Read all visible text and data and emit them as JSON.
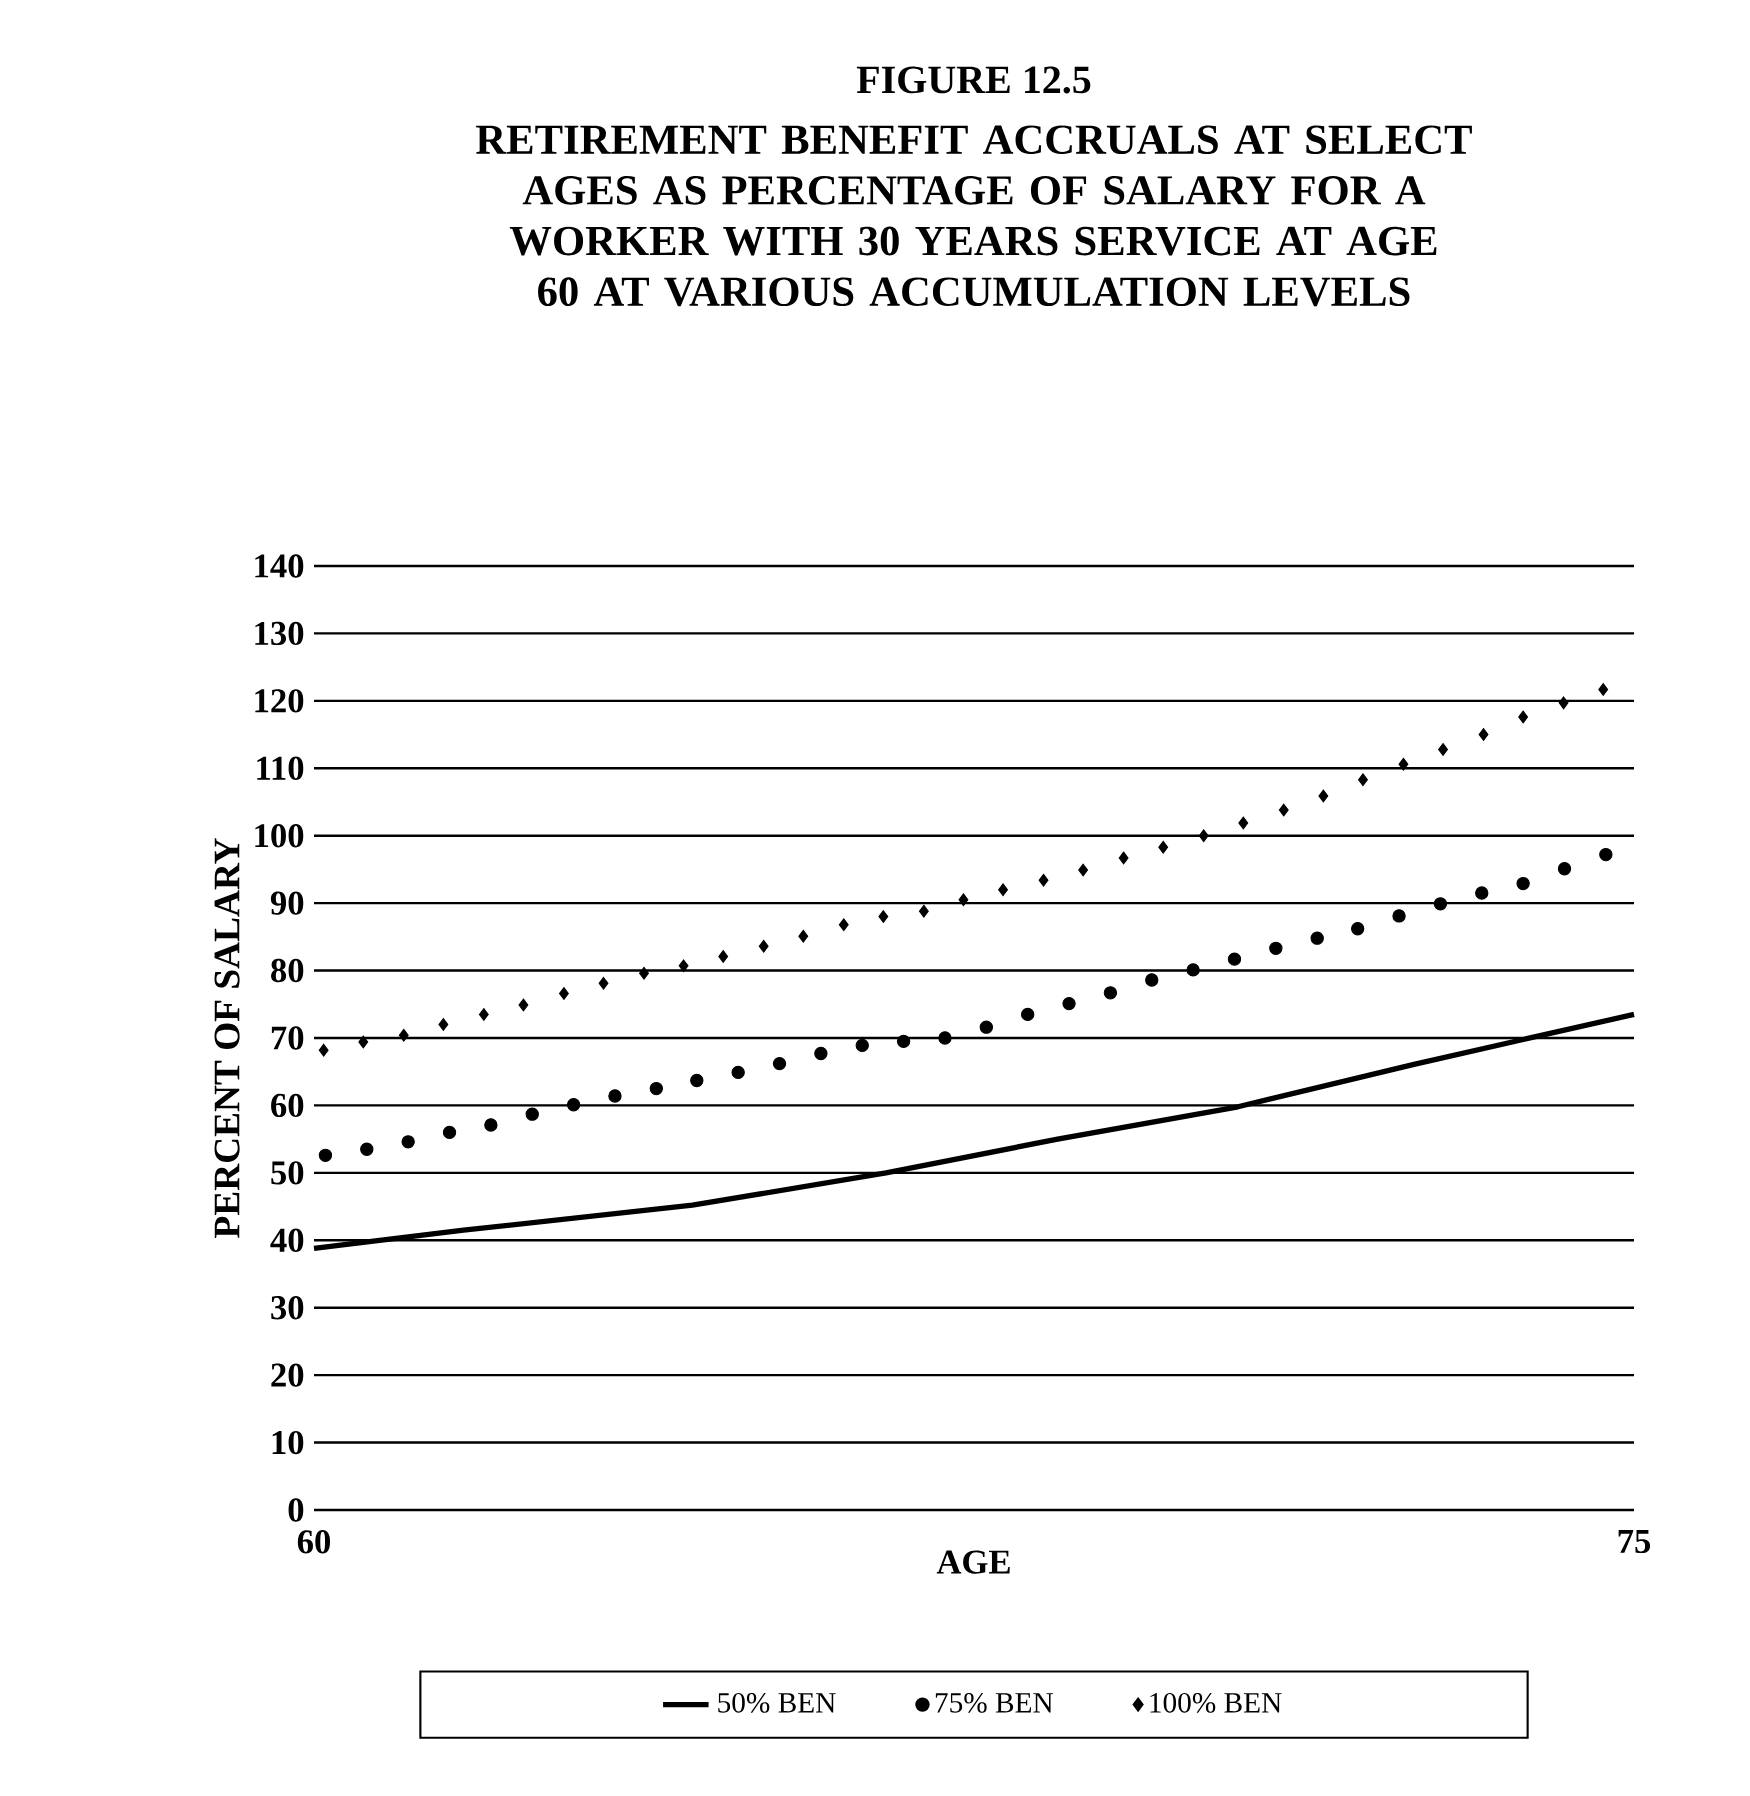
{
  "chart_data": {
    "type": "line",
    "title": "FIGURE 12.5",
    "subtitle": "RETIREMENT BENEFIT ACCRUALS AT SELECT AGES AS PERCENTAGE OF SALARY FOR A WORKER WITH 30 YEARS SERVICE AT AGE 60 AT VARIOUS ACCUMULATION LEVELS",
    "xlabel": "AGE",
    "ylabel": "PERCENT OF SALARY",
    "xlim": [
      60,
      75
    ],
    "xticks": [
      60,
      75
    ],
    "ylim": [
      0,
      140
    ],
    "yticks": [
      0,
      10,
      20,
      30,
      40,
      50,
      60,
      70,
      80,
      90,
      100,
      110,
      120,
      130,
      140
    ],
    "grid": "y",
    "legend": "bottom",
    "series": [
      {
        "name": "50% BEN",
        "type": "line",
        "color": "#000000",
        "line_style": "solid",
        "marker": "none",
        "x": [
          60,
          61.7,
          64.3,
          66.5,
          68.45,
          70.5,
          72.5,
          75
        ],
        "values": [
          38.8,
          41.5,
          45.2,
          50,
          55,
          59.8,
          66.1,
          73.5
        ]
      },
      {
        "name": "75% BEN",
        "type": "scatter",
        "color": "#000000",
        "marker": "circle",
        "x": [
          60.13,
          60.6,
          61.07,
          61.54,
          62.01,
          62.48,
          62.95,
          63.42,
          63.89,
          64.35,
          64.82,
          65.29,
          65.76,
          66.23,
          66.7,
          67.17,
          67.64,
          68.11,
          68.58,
          69.05,
          69.52,
          69.99,
          70.46,
          70.93,
          71.4,
          71.86,
          72.33,
          72.8,
          73.27,
          73.74,
          74.21,
          74.68
        ],
        "values": [
          52.6,
          53.5,
          54.6,
          56.0,
          57.1,
          58.7,
          60.1,
          61.4,
          62.5,
          63.7,
          64.9,
          66.2,
          67.7,
          68.9,
          69.5,
          70.0,
          71.6,
          73.5,
          75.1,
          76.7,
          78.6,
          80.1,
          81.7,
          83.3,
          84.8,
          86.2,
          88.1,
          89.9,
          91.5,
          92.9,
          95.1,
          97.2
        ]
      },
      {
        "name": "100% BEN",
        "type": "scatter",
        "color": "#000000",
        "marker": "diamond",
        "x": [
          60.11,
          60.56,
          61.02,
          61.47,
          61.93,
          62.38,
          62.84,
          63.29,
          63.75,
          64.2,
          64.65,
          65.11,
          65.56,
          66.02,
          66.47,
          66.93,
          67.38,
          67.83,
          68.29,
          68.74,
          69.2,
          69.65,
          70.11,
          70.56,
          71.02,
          71.47,
          71.92,
          72.38,
          72.83,
          73.29,
          73.74,
          74.2,
          74.65
        ],
        "values": [
          68.2,
          69.4,
          70.4,
          72.0,
          73.5,
          74.9,
          76.6,
          78.1,
          79.6,
          80.7,
          82.1,
          83.6,
          85.1,
          86.8,
          88.0,
          88.8,
          90.5,
          92.0,
          93.4,
          94.9,
          96.7,
          98.3,
          100.0,
          101.9,
          103.8,
          105.9,
          108.3,
          110.6,
          112.8,
          115.0,
          117.6,
          119.7,
          121.7
        ]
      }
    ]
  }
}
